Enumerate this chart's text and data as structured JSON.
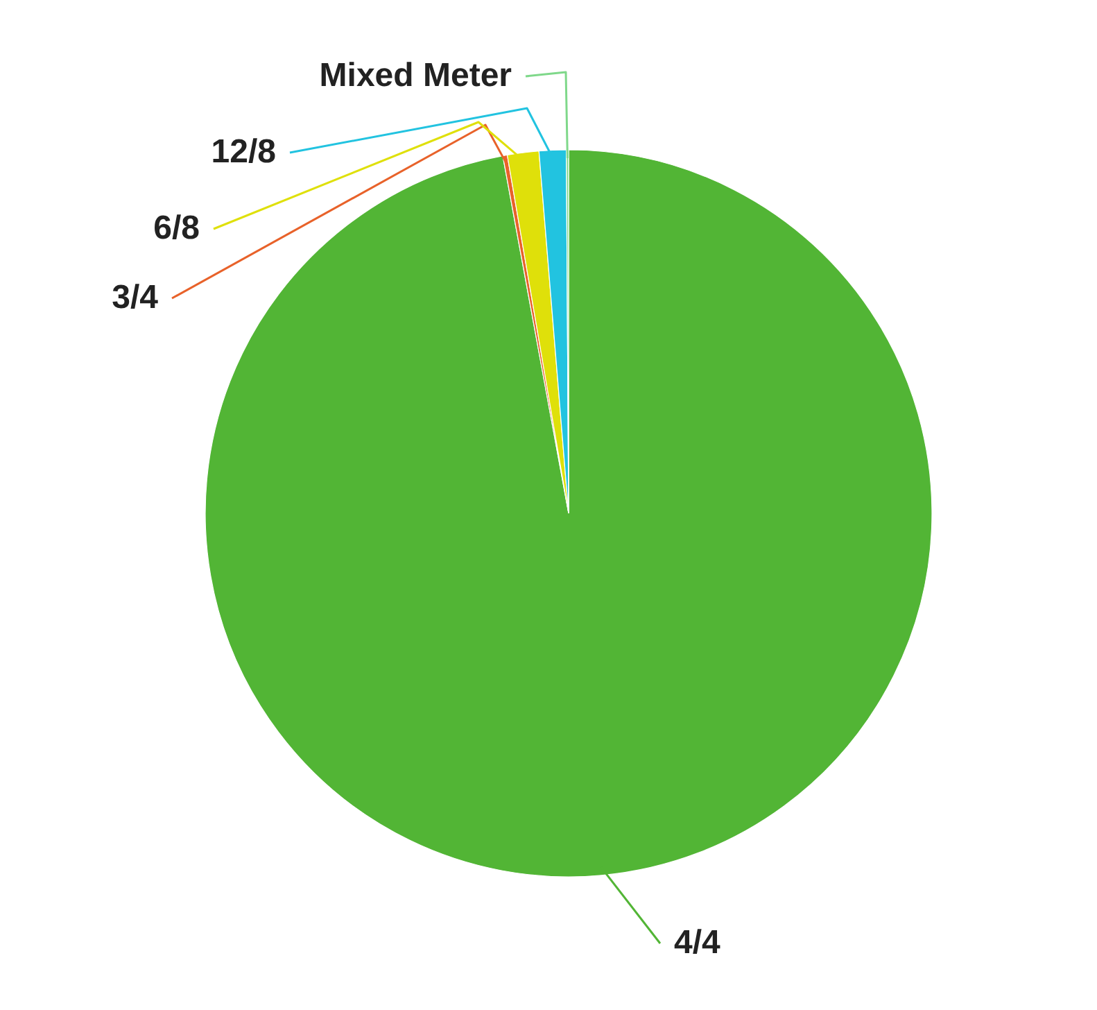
{
  "chart_data": {
    "type": "pie",
    "categories": [
      "4/4",
      "3/4",
      "6/8",
      "12/8",
      "Mixed Meter"
    ],
    "values": [
      97.1,
      0.2,
      1.4,
      1.2,
      0.1
    ],
    "colors": [
      "#52b535",
      "#e8622a",
      "#dfe00a",
      "#22c3e0",
      "#7fd88a"
    ]
  }
}
